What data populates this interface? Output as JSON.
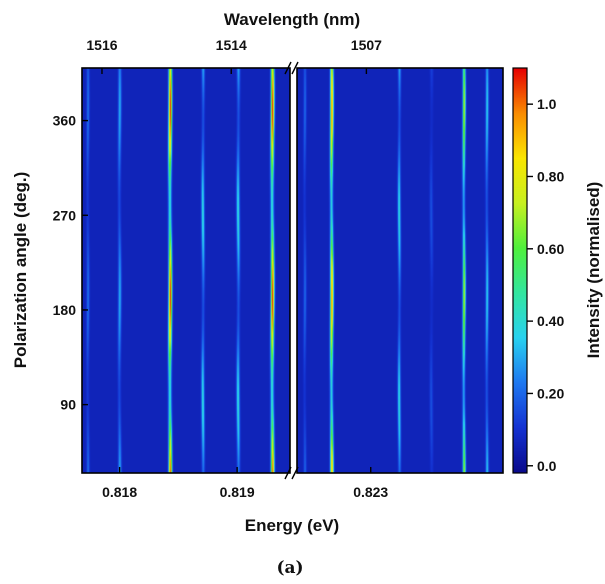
{
  "chart_data": {
    "type": "heatmap",
    "panel_label": "(a)",
    "xlabel": "Energy (eV)",
    "x2label": "Wavelength (nm)",
    "ylabel": "Polarization angle (deg.)",
    "colorbar_label": "Intensity (normalised)",
    "colorscale": [
      "#0a0a8c",
      "#1432d2",
      "#1e78f0",
      "#28d2f0",
      "#32e6a0",
      "#50f03c",
      "#c8f020",
      "#fae600",
      "#fa8c00",
      "#e60000"
    ],
    "ylim": [
      25,
      410
    ],
    "colorbar_range": [
      -0.02,
      1.1
    ],
    "yticks": [
      {
        "label": "90",
        "value": 90
      },
      {
        "label": "180",
        "value": 180
      },
      {
        "label": "270",
        "value": 270
      },
      {
        "label": "360",
        "value": 360
      }
    ],
    "colorbar_ticks": [
      {
        "label": "0.0",
        "value": 0.0
      },
      {
        "label": "0.20",
        "value": 0.2
      },
      {
        "label": "0.40",
        "value": 0.4
      },
      {
        "label": "0.60",
        "value": 0.6
      },
      {
        "label": "0.80",
        "value": 0.8
      },
      {
        "label": "1.0",
        "value": 1.0
      }
    ],
    "segments": [
      {
        "xlim": [
          0.81768,
          0.81945
        ],
        "bottom_ticks": [
          {
            "label": "0.818",
            "value": 0.818
          },
          {
            "label": "0.819",
            "value": 0.819
          }
        ],
        "top_ticks": [
          {
            "label": "1516",
            "value": 0.81785
          },
          {
            "label": "1514",
            "value": 0.81895
          }
        ],
        "peaks": [
          {
            "center": 0.81843,
            "amplitude": 1.0,
            "width": 9.5e-06,
            "phase": "a"
          },
          {
            "center": 0.8193,
            "amplitude": 1.0,
            "width": 9.5e-06,
            "phase": "a"
          },
          {
            "center": 0.818,
            "amplitude": 0.25,
            "width": 9e-06,
            "phase": "a"
          },
          {
            "center": 0.81871,
            "amplitude": 0.34,
            "width": 8.5e-06,
            "phase": "b"
          },
          {
            "center": 0.81901,
            "amplitude": 0.34,
            "width": 9e-06,
            "phase": "b"
          },
          {
            "center": 0.81773,
            "amplitude": 0.16,
            "width": 8e-06,
            "phase": "a"
          }
        ]
      },
      {
        "xlim": [
          0.8213,
          0.82605
        ],
        "bottom_ticks": [
          {
            "label": "0.823",
            "value": 0.823
          }
        ],
        "top_ticks": [
          {
            "label": "1507",
            "value": 0.8229
          }
        ],
        "peaks": [
          {
            "center": 0.8221,
            "amplitude": 0.92,
            "width": 2.4e-05,
            "phase": "a"
          },
          {
            "center": 0.82515,
            "amplitude": 0.66,
            "width": 2.2e-05,
            "phase": "a"
          },
          {
            "center": 0.82366,
            "amplitude": 0.34,
            "width": 2.2e-05,
            "phase": "b"
          },
          {
            "center": 0.82568,
            "amplitude": 0.3,
            "width": 2.2e-05,
            "phase": "a"
          },
          {
            "center": 0.82148,
            "amplitude": 0.14,
            "width": 2.2e-05,
            "phase": "a"
          },
          {
            "center": 0.8244,
            "amplitude": 0.1,
            "width": 2.5e-05,
            "phase": "b"
          }
        ]
      }
    ]
  }
}
